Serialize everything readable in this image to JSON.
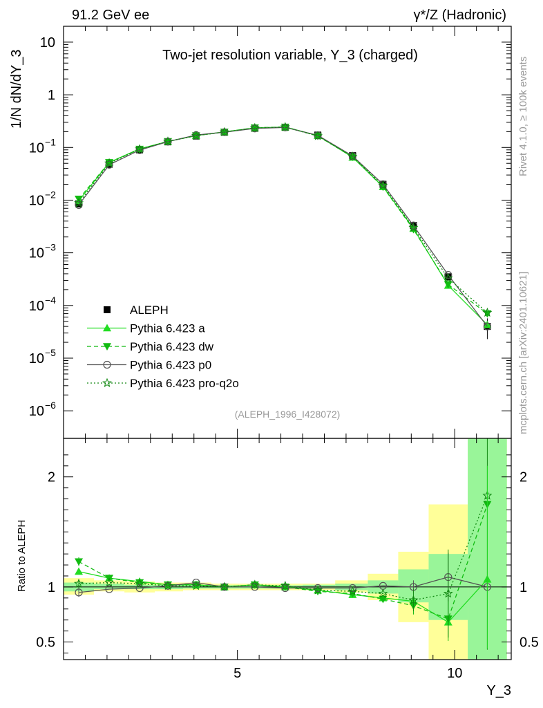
{
  "header": {
    "left": "91.2 GeV ee",
    "right": "γ*/Z (Hadronic)"
  },
  "side_text": {
    "rivet": "Rivet 4.1.0, ≥ 100k events",
    "mcplots": "mcplots.cern.ch [arXiv:2401.10621]"
  },
  "chart_data": [
    {
      "type": "line",
      "panel": "main",
      "title": "Two-jet resolution variable, Y_3 (charged)",
      "annotation": "(ALEPH_1996_I428072)",
      "ylabel": "1/N  dN/dY_3",
      "yscale": "log",
      "ylim": [
        3e-07,
        20
      ],
      "xlim": [
        1.0,
        11.3
      ],
      "y_ticks": [
        {
          "value": 10,
          "label": "10"
        },
        {
          "value": 1,
          "label": "1"
        },
        {
          "value": 0.1,
          "label": "10",
          "exp": "−1"
        },
        {
          "value": 0.01,
          "label": "10",
          "exp": "−2"
        },
        {
          "value": 0.001,
          "label": "10",
          "exp": "−3"
        },
        {
          "value": 0.0001,
          "label": "10",
          "exp": "−4"
        },
        {
          "value": 1e-05,
          "label": "10",
          "exp": "−5"
        },
        {
          "value": 1e-06,
          "label": "10",
          "exp": "−6"
        }
      ],
      "x": [
        1.35,
        2.05,
        2.75,
        3.4,
        4.05,
        4.7,
        5.4,
        6.1,
        6.85,
        7.65,
        8.35,
        9.05,
        9.85,
        10.75
      ],
      "series": [
        {
          "name": "ALEPH",
          "style": "data",
          "color": "#000000",
          "values": [
            0.0085,
            0.048,
            0.09,
            0.128,
            0.165,
            0.195,
            0.232,
            0.242,
            0.172,
            0.07,
            0.02,
            0.0033,
            0.00035,
            4e-05
          ],
          "err": [
            0.0008,
            0.003,
            0.004,
            0.005,
            0.005,
            0.005,
            0.006,
            0.006,
            0.005,
            0.003,
            0.001,
            0.0003,
            5e-05,
            1.7e-05
          ]
        },
        {
          "name": "Pythia 6.423 a",
          "style": "solid",
          "marker": "triangle-up",
          "color": "#22dd22",
          "values": [
            0.0097,
            0.052,
            0.094,
            0.13,
            0.168,
            0.198,
            0.235,
            0.245,
            0.168,
            0.065,
            0.018,
            0.0029,
            0.00024,
            4.3e-05
          ]
        },
        {
          "name": "Pythia 6.423 dw",
          "style": "dashed",
          "marker": "triangle-down",
          "color": "#11bb11",
          "values": [
            0.0105,
            0.052,
            0.093,
            0.13,
            0.168,
            0.197,
            0.237,
            0.245,
            0.165,
            0.066,
            0.0178,
            0.0028,
            0.00025,
            7e-05
          ]
        },
        {
          "name": "Pythia 6.423 p0",
          "style": "solid",
          "marker": "circle-open",
          "color": "#555555",
          "values": [
            0.0081,
            0.047,
            0.089,
            0.129,
            0.172,
            0.195,
            0.23,
            0.24,
            0.17,
            0.069,
            0.02,
            0.0033,
            0.00038,
            4e-05
          ]
        },
        {
          "name": "Pythia 6.423 pro-q2o",
          "style": "dotted",
          "marker": "star-open",
          "color": "#118811",
          "values": [
            0.0088,
            0.05,
            0.093,
            0.13,
            0.167,
            0.196,
            0.235,
            0.244,
            0.165,
            0.067,
            0.019,
            0.003,
            0.00033,
            7.3e-05
          ]
        }
      ]
    },
    {
      "type": "line",
      "panel": "ratio",
      "ylabel": "Ratio to ALEPH",
      "xlabel": "Y_3",
      "ylim": [
        0.34,
        2.35
      ],
      "xlim": [
        1.0,
        11.3
      ],
      "y_ticks": [
        {
          "value": 2,
          "label": "2"
        },
        {
          "value": 1,
          "label": "1"
        },
        {
          "value": 0.5,
          "label": "0.5"
        }
      ],
      "x_ticks": [
        {
          "value": 5,
          "label": "5"
        },
        {
          "value": 10,
          "label": "10"
        }
      ],
      "band_edges": [
        1.0,
        1.7,
        2.4,
        3.1,
        3.75,
        4.4,
        5.05,
        5.75,
        6.5,
        7.25,
        8.0,
        8.7,
        9.4,
        10.3,
        11.2
      ],
      "yellow_band": [
        [
          0.93,
          1.08
        ],
        [
          0.96,
          1.06
        ],
        [
          0.95,
          1.05
        ],
        [
          0.96,
          1.04
        ],
        [
          0.97,
          1.04
        ],
        [
          0.97,
          1.03
        ],
        [
          0.97,
          1.03
        ],
        [
          0.97,
          1.03
        ],
        [
          0.97,
          1.03
        ],
        [
          0.95,
          1.06
        ],
        [
          0.88,
          1.12
        ],
        [
          0.68,
          1.32
        ],
        [
          0.33,
          1.75
        ],
        [
          0.33,
          2.35
        ]
      ],
      "green_band": [
        [
          0.96,
          1.04
        ],
        [
          0.98,
          1.03
        ],
        [
          0.98,
          1.02
        ],
        [
          0.98,
          1.02
        ],
        [
          0.985,
          1.02
        ],
        [
          0.985,
          1.015
        ],
        [
          0.985,
          1.015
        ],
        [
          0.985,
          1.015
        ],
        [
          0.985,
          1.02
        ],
        [
          0.97,
          1.03
        ],
        [
          0.94,
          1.06
        ],
        [
          0.86,
          1.16
        ],
        [
          0.7,
          1.3
        ],
        [
          0.33,
          2.35
        ]
      ],
      "series": [
        {
          "name": "Pythia 6.423 a",
          "values": [
            1.14,
            1.08,
            1.05,
            1.02,
            1.02,
            1.0,
            1.02,
            1.0,
            0.97,
            0.93,
            0.9,
            0.87,
            0.68,
            1.07
          ]
        },
        {
          "name": "Pythia 6.423 dw",
          "values": [
            1.23,
            1.08,
            1.04,
            1.02,
            1.02,
            1.0,
            1.02,
            1.0,
            0.96,
            0.94,
            0.89,
            0.83,
            0.71,
            1.75
          ],
          "err": [
            0.04,
            0,
            0,
            0,
            0,
            0,
            0,
            0,
            0,
            0,
            0,
            0.08,
            0.2,
            0
          ]
        },
        {
          "name": "Pythia 6.423 p0",
          "values": [
            0.95,
            0.98,
            0.99,
            1.01,
            1.04,
            1.0,
            1.0,
            0.99,
            0.99,
            0.99,
            1.01,
            1.0,
            1.09,
            1.0
          ],
          "err": [
            0.04,
            0,
            0,
            0,
            0,
            0,
            0,
            0,
            0,
            0,
            0,
            0.06,
            0.22,
            0
          ]
        },
        {
          "name": "Pythia 6.423 pro-q2o",
          "values": [
            1.03,
            1.04,
            1.03,
            1.01,
            1.01,
            1.0,
            1.02,
            1.01,
            0.97,
            0.96,
            0.94,
            0.88,
            0.94,
            1.83
          ],
          "err": [
            0.04,
            0,
            0,
            0,
            0,
            0,
            0,
            0,
            0,
            0,
            0,
            0.1,
            0.4,
            1.4
          ]
        }
      ]
    }
  ]
}
